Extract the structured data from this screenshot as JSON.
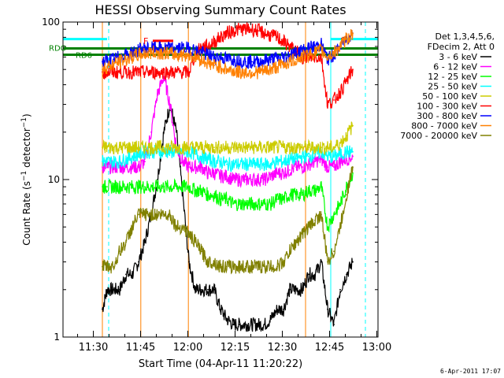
{
  "chart_data": {
    "type": "line",
    "title": "HESSI Observing Summary Count Rates",
    "xlabel": "Start Time (04-Apr-11 11:20:22)",
    "ylabel": "Count Rate (s^-1 detector^-1)",
    "ylabel_main": "Count Rate (s",
    "ylabel_sup": "−1",
    "ylabel_tail": " detector",
    "ylabel_sup2": "−1",
    "ylabel_close": ")",
    "x_unit": "minutes after 11:20:22",
    "xlim": [
      0,
      100
    ],
    "ylim": [
      1,
      100
    ],
    "yscale": "log",
    "xticks": [
      {
        "label": "11:30",
        "value": 9.63
      },
      {
        "label": "11:45",
        "value": 24.63
      },
      {
        "label": "12:00",
        "value": 39.63
      },
      {
        "label": "12:15",
        "value": 54.63
      },
      {
        "label": "12:30",
        "value": 69.63
      },
      {
        "label": "12:45",
        "value": 84.63
      },
      {
        "label": "13:00",
        "value": 99.63
      }
    ],
    "yticks": [
      {
        "label": "1",
        "value": 1
      },
      {
        "label": "10",
        "value": 10
      },
      {
        "label": "100",
        "value": 100
      }
    ],
    "legend": {
      "placement": "right",
      "header": [
        "Det 1,3,4,5,6,",
        "FDecim 2, Att 0"
      ],
      "entries": [
        {
          "label": "3 - 6 keV",
          "color": "#000000"
        },
        {
          "label": "6 - 12 keV",
          "color": "#ff00ff"
        },
        {
          "label": "12 - 25 keV",
          "color": "#00ff00"
        },
        {
          "label": "25 - 50 keV",
          "color": "#00ffff"
        },
        {
          "label": "50 - 100 keV",
          "color": "#cccc00"
        },
        {
          "label": "100 - 300 keV",
          "color": "#ff0000"
        },
        {
          "label": "300 - 800 keV",
          "color": "#0000ff"
        },
        {
          "label": "800 - 7000 keV",
          "color": "#ff8000"
        },
        {
          "label": "7000 - 20000 keV",
          "color": "#808000"
        }
      ]
    },
    "series": [
      {
        "name": "3 - 6 keV",
        "color": "#000000",
        "x": [
          12.5,
          14,
          16,
          18,
          20,
          22,
          24,
          26,
          28,
          30,
          32,
          34,
          36,
          38,
          40,
          42,
          44,
          46,
          48,
          50,
          52,
          54,
          56,
          58,
          60,
          62,
          64,
          66,
          68,
          70,
          72,
          74,
          76,
          78,
          80,
          82,
          84,
          86,
          88,
          90,
          92
        ],
        "y": [
          1.5,
          2,
          2,
          2,
          2.5,
          2.5,
          3,
          4,
          6,
          10,
          20,
          30,
          20,
          8,
          3,
          2,
          2,
          2,
          2,
          1.5,
          1.3,
          1.2,
          1.2,
          1.2,
          1.2,
          1.2,
          1.2,
          1.3,
          1.5,
          1.5,
          2,
          2,
          2,
          2.5,
          2.5,
          3,
          1.5,
          1.2,
          2,
          2.5,
          3
        ]
      },
      {
        "name": "6 - 12 keV",
        "color": "#ff00ff",
        "x": [
          12.5,
          14,
          16,
          18,
          20,
          22,
          24,
          26,
          28,
          30,
          32,
          34,
          36,
          38,
          40,
          42,
          44,
          46,
          48,
          50,
          52,
          54,
          56,
          58,
          60,
          62,
          64,
          66,
          68,
          70,
          72,
          74,
          76,
          78,
          80,
          82,
          84,
          86,
          88,
          90,
          92
        ],
        "y": [
          12,
          12,
          12,
          12,
          12,
          12,
          12,
          13,
          20,
          35,
          45,
          30,
          16,
          13,
          12,
          12,
          12,
          11,
          11,
          10.5,
          10.5,
          10,
          10,
          10,
          10,
          10,
          10,
          10.5,
          11,
          11,
          11.5,
          12,
          12,
          12.5,
          13,
          13.5,
          12,
          12,
          13,
          13.5,
          14
        ]
      },
      {
        "name": "12 - 25 keV",
        "color": "#00ff00",
        "x": [
          12.5,
          14,
          16,
          18,
          20,
          22,
          24,
          26,
          28,
          30,
          32,
          34,
          36,
          38,
          40,
          42,
          44,
          46,
          48,
          50,
          52,
          54,
          56,
          58,
          60,
          62,
          64,
          66,
          68,
          70,
          72,
          74,
          76,
          78,
          80,
          82,
          84,
          86,
          88,
          90,
          92
        ],
        "y": [
          9,
          9,
          9,
          9,
          9,
          9,
          9,
          9,
          9,
          9,
          9,
          9,
          9,
          9,
          9,
          8.5,
          8.5,
          8,
          8,
          7.5,
          7.5,
          7,
          7,
          7,
          7,
          7,
          7,
          7,
          7.5,
          7.5,
          8,
          8,
          8,
          8.5,
          8.5,
          9,
          5,
          6,
          7,
          9,
          11
        ]
      },
      {
        "name": "25 - 50 keV",
        "color": "#00ffff",
        "x": [
          12.5,
          14,
          16,
          18,
          20,
          22,
          24,
          26,
          28,
          30,
          32,
          34,
          36,
          38,
          40,
          42,
          44,
          46,
          48,
          50,
          52,
          54,
          56,
          58,
          60,
          62,
          64,
          66,
          68,
          70,
          72,
          74,
          76,
          78,
          80,
          82,
          84,
          86,
          88,
          90,
          92
        ],
        "y": [
          13,
          13,
          13,
          13,
          13.5,
          14,
          14.5,
          15,
          15,
          15,
          15,
          15,
          15,
          15,
          15,
          14.5,
          14,
          13.5,
          13,
          13,
          12.5,
          12.5,
          12.5,
          12.5,
          12.5,
          12.5,
          12.5,
          12.5,
          13,
          13,
          13.5,
          13.5,
          14,
          14,
          14.5,
          15,
          14,
          14,
          14.5,
          15,
          15
        ]
      },
      {
        "name": "50 - 100 keV",
        "color": "#cccc00",
        "x": [
          12.5,
          14,
          16,
          18,
          20,
          22,
          24,
          26,
          28,
          30,
          32,
          34,
          36,
          38,
          40,
          42,
          44,
          46,
          48,
          50,
          52,
          54,
          56,
          58,
          60,
          62,
          64,
          66,
          68,
          70,
          72,
          74,
          76,
          78,
          80,
          82,
          84,
          86,
          88,
          90,
          92
        ],
        "y": [
          16,
          16,
          16,
          16,
          16,
          16,
          16,
          16,
          16,
          16,
          16,
          16,
          16,
          16,
          16,
          16,
          16,
          16,
          16,
          16,
          16,
          16,
          16,
          16,
          16,
          16,
          16,
          16,
          16,
          16,
          16,
          16,
          16,
          16,
          16,
          16,
          16,
          16,
          17,
          19,
          22
        ]
      },
      {
        "name": "100 - 300 keV",
        "color": "#ff0000",
        "x": [
          12.5,
          14,
          16,
          18,
          20,
          22,
          24,
          26,
          28,
          30,
          32,
          34,
          36,
          38,
          40,
          42,
          44,
          46,
          48,
          50,
          52,
          54,
          56,
          58,
          60,
          62,
          64,
          66,
          68,
          70,
          72,
          74,
          76,
          78,
          80,
          82,
          84,
          86,
          88,
          90,
          92
        ],
        "y": [
          48,
          48,
          48,
          48,
          48,
          48,
          48,
          48,
          48,
          48,
          48,
          48,
          48,
          48,
          48,
          62,
          70,
          70,
          75,
          80,
          85,
          88,
          90,
          90,
          90,
          88,
          85,
          82,
          80,
          75,
          70,
          65,
          60,
          60,
          60,
          60,
          30,
          32,
          36,
          42,
          50
        ]
      },
      {
        "name": "300 - 800 keV",
        "color": "#0000ff",
        "x": [
          12.5,
          14,
          16,
          18,
          20,
          22,
          24,
          26,
          28,
          30,
          32,
          34,
          36,
          38,
          40,
          42,
          44,
          46,
          48,
          50,
          52,
          54,
          56,
          58,
          60,
          62,
          64,
          66,
          68,
          70,
          72,
          74,
          76,
          78,
          80,
          82,
          84,
          86,
          88,
          90,
          92
        ],
        "y": [
          56,
          57,
          58,
          60,
          62,
          64,
          66,
          68,
          68,
          68,
          68,
          68,
          68,
          68,
          68,
          66,
          64,
          62,
          60,
          60,
          58,
          58,
          57,
          56,
          56,
          56,
          57,
          58,
          59,
          60,
          62,
          64,
          66,
          68,
          70,
          72,
          58,
          62,
          70,
          78,
          85
        ]
      },
      {
        "name": "800 - 7000 keV",
        "color": "#ff8000",
        "x": [
          12.5,
          14,
          16,
          18,
          20,
          22,
          24,
          26,
          28,
          30,
          32,
          34,
          36,
          38,
          40,
          42,
          44,
          46,
          48,
          50,
          52,
          54,
          56,
          58,
          60,
          62,
          64,
          66,
          68,
          70,
          72,
          74,
          76,
          78,
          80,
          82,
          84,
          86,
          88,
          90,
          92
        ],
        "y": [
          50,
          52,
          54,
          56,
          58,
          60,
          62,
          63,
          64,
          64,
          64,
          63,
          62,
          62,
          62,
          60,
          58,
          55,
          53,
          52,
          50,
          49,
          48,
          48,
          48,
          48,
          49,
          50,
          52,
          54,
          56,
          58,
          60,
          62,
          64,
          66,
          60,
          64,
          70,
          78,
          85
        ]
      },
      {
        "name": "7000 - 20000 keV",
        "color": "#808000",
        "x": [
          12.5,
          14,
          16,
          18,
          20,
          22,
          24,
          26,
          28,
          30,
          32,
          34,
          36,
          38,
          40,
          42,
          44,
          46,
          48,
          50,
          52,
          54,
          56,
          58,
          60,
          62,
          64,
          66,
          68,
          70,
          72,
          74,
          76,
          78,
          80,
          82,
          84,
          86,
          88,
          90,
          92
        ],
        "y": [
          2.8,
          2.8,
          2.8,
          3.5,
          4,
          5,
          6,
          6,
          6,
          6,
          6,
          6,
          5,
          5,
          4.5,
          4,
          3.5,
          3,
          3,
          2.8,
          2.8,
          2.8,
          2.8,
          2.8,
          2.8,
          2.8,
          2.8,
          2.8,
          2.8,
          3,
          3.5,
          4,
          4.5,
          5,
          5.5,
          6,
          3,
          3.5,
          5,
          8,
          12
        ]
      }
    ],
    "vertical_lines": [
      {
        "color": "#00ffff",
        "style": "solid",
        "x": [
          0,
          85
        ]
      },
      {
        "color": "#00ffff",
        "style": "dashed",
        "x": [
          14.5,
          96
        ]
      },
      {
        "color": "#ff8000",
        "style": "solid",
        "x": [
          12.5,
          24.7,
          39.8,
          77
        ]
      }
    ],
    "annotations": {
      "rdo_label": "RDO",
      "rd6_label": "RD6",
      "f_label": "F",
      "footer": "6-Apr-2011 17:07"
    },
    "bars": {
      "rdo": {
        "color": "#008000",
        "y": 68,
        "x": [
          0,
          100
        ]
      },
      "rd6": {
        "color": "#008000",
        "y": 62,
        "x": [
          0,
          100
        ]
      },
      "cyan_top": {
        "color": "#00ffff",
        "y": 78,
        "segments": [
          [
            0,
            14
          ],
          [
            85,
            100
          ]
        ]
      },
      "flare": {
        "color": "#ff0000",
        "y": 76,
        "x": [
          28.5,
          35
        ]
      }
    }
  }
}
